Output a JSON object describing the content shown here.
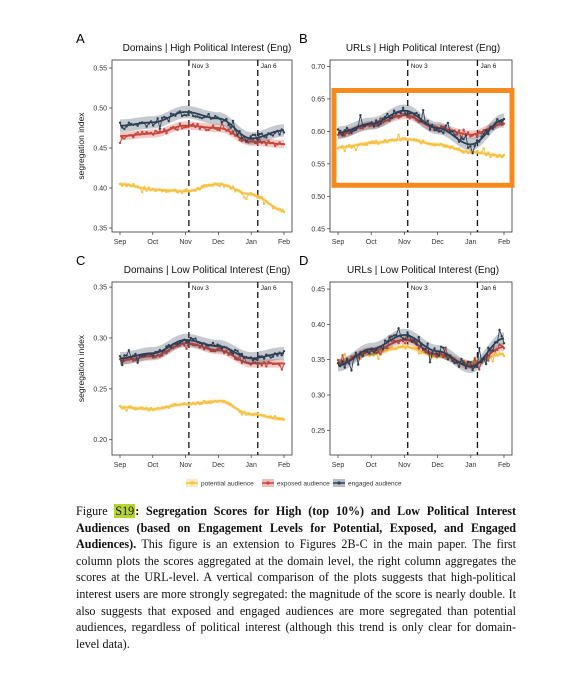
{
  "figure": {
    "legend": [
      {
        "label": "potential audience",
        "color": "#f5c244"
      },
      {
        "label": "exposed audience",
        "color": "#c8453a"
      },
      {
        "label": "engaged audience",
        "color": "#2e3f55"
      }
    ],
    "event_labels": [
      "Nov 3",
      "Jan 6"
    ],
    "x_ticks": [
      "Sep",
      "Oct",
      "Nov",
      "Dec",
      "Jan",
      "Feb"
    ],
    "y_axis_label": "segregation index"
  },
  "caption": {
    "figure_label": "Figure ",
    "figure_number": "S19",
    "title": ": Segregation Scores for High (top 10%) and Low Political Interest Audiences (based on Engagement Levels for Potential, Exposed, and Engaged Audiences).",
    "body": " This figure is an extension to Figures 2B-C in the main paper. The first column plots the scores aggregated at the domain level, the right column aggregates the scores at the URL-level. A vertical comparison of the plots suggests that high-political interest users are more strongly segregated: the magnitude of the score is nearly double. It also suggests that exposed and engaged audiences are more segregated than potential audiences, regardless of political interest (although this trend is only clear for domain-level data)."
  },
  "colors": {
    "potential": "#f5c244",
    "exposed": "#c8453a",
    "engaged": "#2e3f55",
    "highlight_box": "#f58a1f",
    "caption_highlight": "#b7d532"
  },
  "chart_data": [
    {
      "type": "line",
      "panel": "A",
      "title": "Domains | High Political Interest (Eng)",
      "ylabel": "segregation index",
      "x": [
        "Sep",
        "Oct",
        "Nov",
        "Dec",
        "Jan",
        "Feb"
      ],
      "yticks": [
        0.35,
        0.4,
        0.45,
        0.5,
        0.55
      ],
      "ylim": [
        0.345,
        0.56
      ],
      "event_lines": [
        "Nov 3",
        "Jan 6"
      ],
      "series": [
        {
          "name": "potential audience",
          "values": [
            0.405,
            0.398,
            0.396,
            0.405,
            0.392,
            0.372
          ]
        },
        {
          "name": "exposed audience",
          "values": [
            0.465,
            0.468,
            0.478,
            0.475,
            0.458,
            0.455
          ]
        },
        {
          "name": "engaged audience",
          "values": [
            0.478,
            0.482,
            0.495,
            0.487,
            0.462,
            0.472
          ]
        }
      ]
    },
    {
      "type": "line",
      "panel": "B",
      "title": "URLs | High Political Interest (Eng)",
      "ylabel": "",
      "x": [
        "Sep",
        "Oct",
        "Nov",
        "Dec",
        "Jan",
        "Feb"
      ],
      "yticks": [
        0.45,
        0.5,
        0.55,
        0.6,
        0.65,
        0.7
      ],
      "ylim": [
        0.445,
        0.71
      ],
      "event_lines": [
        "Nov 3",
        "Jan 6"
      ],
      "highlighted": true,
      "series": [
        {
          "name": "potential audience",
          "values": [
            0.575,
            0.582,
            0.588,
            0.58,
            0.568,
            0.562
          ]
        },
        {
          "name": "exposed audience",
          "values": [
            0.595,
            0.61,
            0.625,
            0.605,
            0.595,
            0.612
          ]
        },
        {
          "name": "engaged audience",
          "values": [
            0.598,
            0.612,
            0.632,
            0.605,
            0.58,
            0.618
          ]
        }
      ]
    },
    {
      "type": "line",
      "panel": "C",
      "title": "Domains | Low Political Interest (Eng)",
      "ylabel": "segregation index",
      "x": [
        "Sep",
        "Oct",
        "Nov",
        "Dec",
        "Jan",
        "Feb"
      ],
      "yticks": [
        0.2,
        0.25,
        0.3,
        0.35
      ],
      "ylim": [
        0.185,
        0.355
      ],
      "event_lines": [
        "Nov 3",
        "Jan 6"
      ],
      "series": [
        {
          "name": "potential audience",
          "values": [
            0.232,
            0.23,
            0.235,
            0.238,
            0.225,
            0.22
          ]
        },
        {
          "name": "exposed audience",
          "values": [
            0.278,
            0.282,
            0.295,
            0.288,
            0.275,
            0.275
          ]
        },
        {
          "name": "engaged audience",
          "values": [
            0.28,
            0.285,
            0.298,
            0.292,
            0.28,
            0.285
          ]
        }
      ]
    },
    {
      "type": "line",
      "panel": "D",
      "title": "URLs | Low Political Interest (Eng)",
      "ylabel": "",
      "x": [
        "Sep",
        "Oct",
        "Nov",
        "Dec",
        "Jan",
        "Feb"
      ],
      "yticks": [
        0.25,
        0.3,
        0.35,
        0.4,
        0.45
      ],
      "ylim": [
        0.215,
        0.46
      ],
      "event_lines": [
        "Nov 3",
        "Jan 6"
      ],
      "series": [
        {
          "name": "potential audience",
          "values": [
            0.348,
            0.358,
            0.368,
            0.355,
            0.345,
            0.358
          ]
        },
        {
          "name": "exposed audience",
          "values": [
            0.345,
            0.362,
            0.378,
            0.358,
            0.342,
            0.368
          ]
        },
        {
          "name": "engaged audience",
          "values": [
            0.342,
            0.365,
            0.385,
            0.362,
            0.34,
            0.38
          ]
        }
      ]
    }
  ]
}
